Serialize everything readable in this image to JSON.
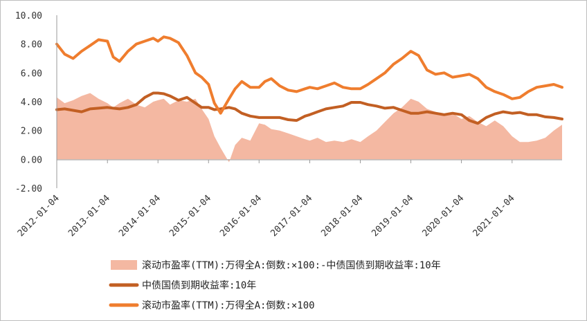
{
  "chart_data": {
    "type": "area",
    "title": "",
    "xlabel": "",
    "ylabel": "",
    "ylim": [
      -2,
      10
    ],
    "yticks": [
      "10.00",
      "8.00",
      "6.00",
      "4.00",
      "2.00",
      "0.00",
      "-2.00"
    ],
    "ytick_values": [
      10,
      8,
      6,
      4,
      2,
      0,
      -2
    ],
    "xticks": [
      "2012-01-04",
      "2013-01-04",
      "2014-01-04",
      "2015-01-04",
      "2016-01-04",
      "2017-01-04",
      "2018-01-04",
      "2019-01-04",
      "2020-01-04",
      "2021-01-04"
    ],
    "xlim": [
      "2012-01-04",
      "2021-12-31"
    ],
    "grid": false,
    "legend_position": "bottom",
    "x": [
      "2012-01-04",
      "2012-03-01",
      "2012-05-01",
      "2012-07-01",
      "2012-09-01",
      "2012-11-01",
      "2013-01-04",
      "2013-02-15",
      "2013-04-01",
      "2013-06-01",
      "2013-08-01",
      "2013-10-01",
      "2013-12-01",
      "2014-01-04",
      "2014-02-15",
      "2014-04-01",
      "2014-06-01",
      "2014-08-01",
      "2014-10-01",
      "2014-11-15",
      "2015-01-04",
      "2015-02-15",
      "2015-04-01",
      "2015-06-01",
      "2015-07-15",
      "2015-09-01",
      "2015-11-01",
      "2016-01-04",
      "2016-02-15",
      "2016-04-01",
      "2016-06-01",
      "2016-08-01",
      "2016-10-01",
      "2016-12-01",
      "2017-01-04",
      "2017-03-01",
      "2017-05-01",
      "2017-07-01",
      "2017-09-01",
      "2017-11-01",
      "2018-01-04",
      "2018-03-01",
      "2018-05-01",
      "2018-07-01",
      "2018-09-01",
      "2018-11-01",
      "2019-01-04",
      "2019-03-01",
      "2019-05-01",
      "2019-07-01",
      "2019-09-01",
      "2019-11-01",
      "2020-01-04",
      "2020-03-01",
      "2020-05-01",
      "2020-07-01",
      "2020-09-01",
      "2020-11-01",
      "2021-01-04",
      "2021-03-01",
      "2021-05-01",
      "2021-07-01",
      "2021-09-01",
      "2021-11-01",
      "2021-12-31"
    ],
    "series": [
      {
        "name": "滚动市盈率(TTM):万得全A:倒数:×100:-中债国债到期收益率:10年",
        "kind": "area",
        "color": "#f4b8a2",
        "values": [
          4.3,
          3.9,
          4.1,
          4.4,
          4.6,
          4.2,
          3.9,
          3.6,
          3.9,
          4.2,
          3.8,
          3.6,
          4.0,
          4.1,
          4.2,
          3.8,
          4.1,
          4.0,
          4.2,
          3.5,
          2.8,
          1.6,
          0.8,
          -0.2,
          1.0,
          1.5,
          1.3,
          2.5,
          2.4,
          2.1,
          2.0,
          1.8,
          1.6,
          1.4,
          1.3,
          1.5,
          1.2,
          1.3,
          1.2,
          1.4,
          1.2,
          1.6,
          2.0,
          2.6,
          3.2,
          3.6,
          4.2,
          4.0,
          3.5,
          3.3,
          3.0,
          3.2,
          2.8,
          3.0,
          2.6,
          2.3,
          2.7,
          2.3,
          1.6,
          1.2,
          1.2,
          1.3,
          1.5,
          2.0,
          2.4
        ]
      },
      {
        "name": "中债国债到期收益率:10年",
        "kind": "line",
        "color": "#c25f23",
        "values": [
          3.45,
          3.5,
          3.4,
          3.3,
          3.5,
          3.55,
          3.6,
          3.55,
          3.5,
          3.6,
          3.8,
          4.3,
          4.6,
          4.6,
          4.55,
          4.4,
          4.1,
          4.3,
          3.9,
          3.6,
          3.6,
          3.45,
          3.5,
          3.6,
          3.5,
          3.2,
          3.0,
          2.9,
          2.9,
          2.9,
          2.9,
          2.75,
          2.7,
          3.0,
          3.1,
          3.3,
          3.5,
          3.6,
          3.7,
          3.95,
          3.95,
          3.8,
          3.7,
          3.55,
          3.6,
          3.4,
          3.2,
          3.2,
          3.3,
          3.2,
          3.1,
          3.2,
          3.1,
          2.7,
          2.5,
          2.9,
          3.15,
          3.3,
          3.2,
          3.25,
          3.1,
          3.1,
          2.95,
          2.9,
          2.8
        ]
      },
      {
        "name": "滚动市盈率(TTM):万得全A:倒数:×100",
        "kind": "line",
        "color": "#ef7d2e",
        "values": [
          8.0,
          7.3,
          7.0,
          7.5,
          7.9,
          8.3,
          8.2,
          7.1,
          6.8,
          7.5,
          8.0,
          8.2,
          8.4,
          8.2,
          8.5,
          8.4,
          8.1,
          7.2,
          6.0,
          5.7,
          5.2,
          3.9,
          3.2,
          4.2,
          4.9,
          5.4,
          5.0,
          5.0,
          5.4,
          5.6,
          5.1,
          4.8,
          4.7,
          4.9,
          5.0,
          4.9,
          5.1,
          5.3,
          5.0,
          4.9,
          4.9,
          5.2,
          5.6,
          6.0,
          6.6,
          7.0,
          7.5,
          7.2,
          6.2,
          5.9,
          6.0,
          5.7,
          5.8,
          5.9,
          5.6,
          5.0,
          4.7,
          4.5,
          4.2,
          4.3,
          4.7,
          5.0,
          5.1,
          5.2,
          5.0
        ]
      }
    ]
  },
  "legend": [
    {
      "label": "滚动市盈率(TTM):万得全A:倒数:×100:-中债国债到期收益率:10年",
      "color": "#f4b8a2",
      "shape": "rect"
    },
    {
      "label": "中债国债到期收益率:10年",
      "color": "#c25f23",
      "shape": "line"
    },
    {
      "label": "滚动市盈率(TTM):万得全A:倒数:×100",
      "color": "#ef7d2e",
      "shape": "line"
    }
  ]
}
